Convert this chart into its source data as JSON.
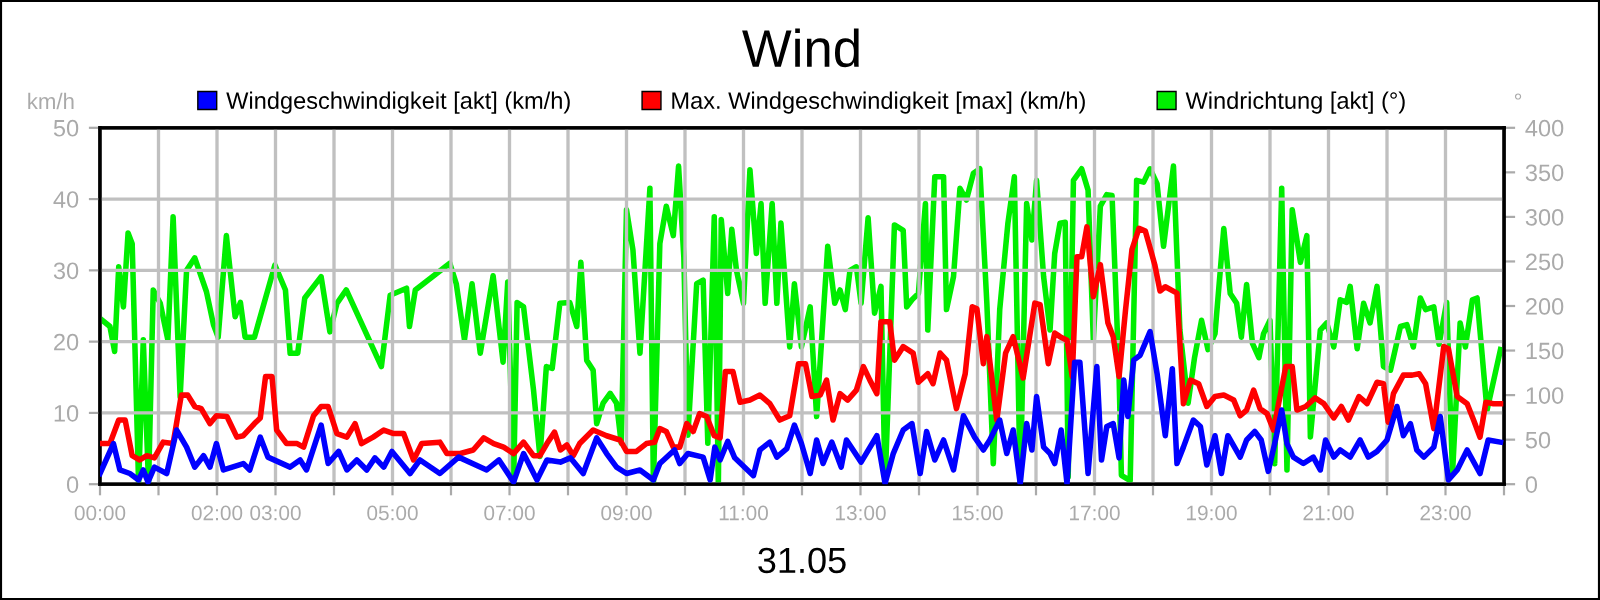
{
  "chart_data": {
    "type": "line",
    "title": "Wind",
    "xlabel": "31.05",
    "ylabel": "km/h",
    "y2label": "°",
    "legend": "top",
    "grid": true,
    "marker": "none",
    "line_style": "solid",
    "xlim": [
      0,
      24
    ],
    "xticks": [
      {
        "value": 0,
        "label": "00:00"
      },
      {
        "value": 1,
        "label": null
      },
      {
        "value": 2,
        "label": "02:00"
      },
      {
        "value": 3,
        "label": "03:00"
      },
      {
        "value": 4,
        "label": null
      },
      {
        "value": 5,
        "label": "05:00"
      },
      {
        "value": 6,
        "label": null
      },
      {
        "value": 7,
        "label": "07:00"
      },
      {
        "value": 8,
        "label": null
      },
      {
        "value": 9,
        "label": "09:00"
      },
      {
        "value": 10,
        "label": null
      },
      {
        "value": 11,
        "label": "11:00"
      },
      {
        "value": 12,
        "label": null
      },
      {
        "value": 13,
        "label": "13:00"
      },
      {
        "value": 14,
        "label": null
      },
      {
        "value": 15,
        "label": "15:00"
      },
      {
        "value": 16,
        "label": null
      },
      {
        "value": 17,
        "label": "17:00"
      },
      {
        "value": 18,
        "label": null
      },
      {
        "value": 19,
        "label": "19:00"
      },
      {
        "value": 20,
        "label": null
      },
      {
        "value": 21,
        "label": "21:00"
      },
      {
        "value": 22,
        "label": null
      },
      {
        "value": 23,
        "label": "23:00"
      },
      {
        "value": 24,
        "label": null
      }
    ],
    "ylim": [
      0,
      50
    ],
    "yticks": [
      0,
      10,
      20,
      30,
      40,
      50
    ],
    "y2lim": [
      0,
      400
    ],
    "y2ticks": [
      0,
      50,
      100,
      150,
      200,
      250,
      300,
      350,
      400
    ],
    "series": [
      {
        "name": "Windrichtung [akt] (°)",
        "color": "#00ee00",
        "axis": "y2",
        "x": [
          0.0,
          0.17,
          0.25,
          0.32,
          0.4,
          0.48,
          0.55,
          0.66,
          0.74,
          0.83,
          0.91,
          1.03,
          1.16,
          1.25,
          1.37,
          1.48,
          1.62,
          1.82,
          1.94,
          2.02,
          2.16,
          2.31,
          2.4,
          2.48,
          2.64,
          2.99,
          3.17,
          3.25,
          3.38,
          3.5,
          3.78,
          3.93,
          4.05,
          4.21,
          4.81,
          4.96,
          5.24,
          5.29,
          5.39,
          5.98,
          6.09,
          6.23,
          6.36,
          6.5,
          6.72,
          6.89,
          6.97,
          7.07,
          7.13,
          7.24,
          7.41,
          7.52,
          7.63,
          7.73,
          7.86,
          8.03,
          8.15,
          8.22,
          8.32,
          8.43,
          8.49,
          8.6,
          8.72,
          8.83,
          8.91,
          9.0,
          9.11,
          9.23,
          9.4,
          9.46,
          9.57,
          9.68,
          9.8,
          9.89,
          9.98,
          10.05,
          10.2,
          10.31,
          10.39,
          10.5,
          10.57,
          10.62,
          10.73,
          10.8,
          10.88,
          11.0,
          11.11,
          11.22,
          11.3,
          11.37,
          11.49,
          11.57,
          11.64,
          11.79,
          11.87,
          11.99,
          12.14,
          12.25,
          12.44,
          12.56,
          12.65,
          12.74,
          12.82,
          12.93,
          13.01,
          13.13,
          13.24,
          13.35,
          13.42,
          13.58,
          13.73,
          13.79,
          13.88,
          13.99,
          14.11,
          14.15,
          14.27,
          14.42,
          14.47,
          14.59,
          14.7,
          14.81,
          14.93,
          15.04,
          15.16,
          15.27,
          15.38,
          15.52,
          15.63,
          15.73,
          15.84,
          15.93,
          16.01,
          16.13,
          16.24,
          16.32,
          16.41,
          16.5,
          16.55,
          16.64,
          16.78,
          16.89,
          16.98,
          17.1,
          17.21,
          17.3,
          17.42,
          17.46,
          17.61,
          17.72,
          17.84,
          17.95,
          18.07,
          18.18,
          18.35,
          18.46,
          18.6,
          18.71,
          18.83,
          18.94,
          19.06,
          19.21,
          19.32,
          19.43,
          19.51,
          19.6,
          19.7,
          19.81,
          19.89,
          20.0,
          20.08,
          20.2,
          20.29,
          20.38,
          20.52,
          20.63,
          20.69,
          20.86,
          20.97,
          21.09,
          21.2,
          21.31,
          21.37,
          21.49,
          21.6,
          21.71,
          21.83,
          21.94,
          22.06,
          22.23,
          22.34,
          22.45,
          22.57,
          22.66,
          22.8,
          22.89,
          23.02,
          23.12,
          23.25,
          23.34,
          23.46,
          23.54,
          23.71,
          23.94
        ],
        "values": [
          186,
          177,
          149,
          244,
          199,
          282,
          270,
          0,
          162,
          0,
          218,
          203,
          162,
          300,
          98,
          240,
          254,
          216,
          179,
          165,
          279,
          188,
          204,
          165,
          165,
          246,
          218,
          147,
          147,
          209,
          233,
          171,
          203,
          218,
          132,
          212,
          220,
          177,
          218,
          248,
          225,
          162,
          225,
          147,
          234,
          137,
          227,
          0,
          204,
          199,
          106,
          31,
          132,
          130,
          203,
          204,
          177,
          249,
          139,
          128,
          68,
          91,
          102,
          91,
          46,
          308,
          263,
          147,
          332,
          0,
          270,
          312,
          279,
          357,
          255,
          55,
          225,
          229,
          46,
          300,
          0,
          297,
          214,
          286,
          240,
          203,
          353,
          259,
          315,
          203,
          315,
          203,
          293,
          154,
          225,
          154,
          199,
          76,
          267,
          203,
          218,
          196,
          240,
          244,
          203,
          299,
          192,
          222,
          0,
          291,
          285,
          199,
          207,
          214,
          315,
          173,
          345,
          345,
          196,
          233,
          332,
          319,
          349,
          354,
          203,
          23,
          196,
          293,
          345,
          0,
          315,
          274,
          341,
          233,
          173,
          259,
          293,
          294,
          8,
          341,
          354,
          330,
          162,
          312,
          325,
          324,
          121,
          10,
          4,
          341,
          339,
          354,
          337,
          267,
          357,
          173,
          91,
          142,
          184,
          151,
          169,
          287,
          214,
          203,
          165,
          224,
          158,
          142,
          169,
          184,
          23,
          332,
          16,
          308,
          249,
          279,
          53,
          173,
          181,
          154,
          207,
          204,
          222,
          152,
          203,
          181,
          222,
          132,
          128,
          177,
          179,
          154,
          209,
          196,
          199,
          157,
          204,
          12,
          181,
          154,
          207,
          209,
          83,
          151
        ]
      },
      {
        "name": "Max. Windgeschwindigkeit [max] (km/h)",
        "color": "#ff0000",
        "x": [
          0.0,
          0.17,
          0.32,
          0.43,
          0.55,
          0.68,
          0.8,
          0.93,
          1.08,
          1.25,
          1.39,
          1.5,
          1.62,
          1.73,
          1.88,
          1.99,
          2.17,
          2.34,
          2.45,
          2.64,
          2.74,
          2.83,
          2.94,
          3.02,
          3.19,
          3.37,
          3.48,
          3.65,
          3.78,
          3.9,
          4.05,
          4.22,
          4.36,
          4.47,
          4.67,
          4.85,
          5.02,
          5.19,
          5.36,
          5.5,
          5.81,
          5.93,
          6.16,
          6.38,
          6.56,
          6.73,
          6.9,
          7.07,
          7.24,
          7.41,
          7.52,
          7.64,
          7.77,
          7.87,
          7.98,
          8.09,
          8.2,
          8.43,
          8.66,
          8.89,
          9.0,
          9.17,
          9.34,
          9.48,
          9.57,
          9.68,
          9.8,
          9.91,
          10.03,
          10.14,
          10.25,
          10.37,
          10.5,
          10.6,
          10.69,
          10.82,
          10.94,
          11.11,
          11.28,
          11.45,
          11.62,
          11.79,
          11.94,
          12.06,
          12.17,
          12.31,
          12.42,
          12.53,
          12.65,
          12.78,
          12.93,
          13.05,
          13.16,
          13.28,
          13.35,
          13.5,
          13.58,
          13.73,
          13.9,
          13.99,
          14.15,
          14.24,
          14.36,
          14.47,
          14.64,
          14.79,
          14.91,
          14.99,
          15.1,
          15.16,
          15.33,
          15.48,
          15.61,
          15.78,
          15.98,
          16.07,
          16.21,
          16.32,
          16.41,
          16.53,
          16.62,
          16.7,
          16.78,
          16.87,
          16.98,
          17.1,
          17.23,
          17.32,
          17.42,
          17.53,
          17.64,
          17.76,
          17.87,
          18.03,
          18.12,
          18.21,
          18.41,
          18.52,
          18.64,
          18.78,
          18.92,
          19.06,
          19.21,
          19.38,
          19.49,
          19.6,
          19.72,
          19.83,
          19.95,
          20.06,
          20.27,
          20.38,
          20.46,
          20.61,
          20.77,
          20.92,
          21.09,
          21.22,
          21.34,
          21.52,
          21.66,
          21.83,
          21.94,
          22.02,
          22.11,
          22.28,
          22.43,
          22.55,
          22.66,
          22.8,
          22.97,
          23.05,
          23.2,
          23.37,
          23.48,
          23.59,
          23.69,
          23.82,
          23.94
        ],
        "values": [
          5.7,
          5.7,
          9.0,
          9.0,
          4.0,
          3.4,
          4.0,
          3.7,
          5.9,
          5.7,
          12.5,
          12.5,
          10.9,
          10.6,
          8.5,
          9.6,
          9.5,
          6.6,
          6.8,
          8.5,
          9.3,
          15.1,
          15.1,
          7.6,
          5.7,
          5.7,
          5.2,
          9.6,
          10.9,
          10.9,
          7.1,
          6.6,
          8.5,
          5.7,
          6.6,
          7.6,
          7.1,
          7.1,
          3.4,
          5.7,
          5.9,
          4.3,
          4.3,
          4.8,
          6.5,
          5.7,
          5.2,
          4.3,
          5.9,
          4.0,
          4.0,
          5.7,
          7.3,
          4.8,
          5.5,
          4.0,
          5.7,
          7.6,
          6.8,
          6.2,
          4.6,
          4.6,
          5.7,
          5.9,
          7.8,
          7.4,
          5.2,
          5.2,
          8.5,
          7.4,
          9.9,
          9.5,
          6.8,
          6.5,
          15.8,
          15.8,
          11.5,
          11.8,
          12.5,
          11.3,
          9.0,
          9.6,
          16.9,
          16.9,
          12.3,
          12.5,
          14.6,
          9.0,
          12.7,
          11.8,
          13.2,
          16.5,
          14.6,
          12.7,
          22.8,
          22.8,
          17.4,
          19.3,
          18.4,
          14.3,
          15.5,
          14.1,
          18.4,
          17.4,
          10.6,
          15.5,
          24.9,
          24.6,
          16.9,
          20.7,
          9.0,
          18.4,
          20.7,
          14.9,
          25.4,
          25.2,
          16.9,
          21.2,
          20.7,
          20.2,
          15.1,
          31.9,
          31.9,
          36.1,
          26.3,
          30.8,
          22.6,
          20.7,
          15.1,
          24.4,
          32.9,
          35.9,
          35.5,
          30.8,
          27.1,
          27.7,
          26.8,
          11.3,
          14.6,
          14.1,
          10.9,
          12.3,
          12.5,
          11.8,
          9.6,
          10.4,
          13.2,
          10.6,
          9.9,
          7.6,
          16.5,
          16.5,
          10.4,
          10.9,
          12.1,
          11.3,
          9.3,
          10.9,
          9.0,
          12.3,
          11.3,
          14.3,
          14.1,
          8.7,
          12.7,
          15.3,
          15.3,
          15.5,
          14.1,
          7.8,
          19.3,
          19.0,
          12.3,
          11.3,
          9.0,
          6.6,
          11.5,
          11.3,
          11.3
        ]
      },
      {
        "name": "Windgeschwindigkeit [akt] (km/h)",
        "color": "#0000ff",
        "x": [
          0.0,
          0.23,
          0.34,
          0.51,
          0.66,
          0.74,
          0.82,
          0.93,
          1.14,
          1.31,
          1.48,
          1.62,
          1.77,
          1.88,
          1.99,
          2.11,
          2.45,
          2.56,
          2.74,
          2.87,
          3.25,
          3.42,
          3.53,
          3.78,
          3.9,
          4.08,
          4.22,
          4.39,
          4.56,
          4.7,
          4.85,
          4.99,
          5.3,
          5.47,
          5.81,
          6.13,
          6.61,
          6.82,
          7.07,
          7.24,
          7.47,
          7.64,
          7.87,
          8.04,
          8.26,
          8.49,
          8.66,
          8.83,
          9.0,
          9.23,
          9.46,
          9.57,
          9.82,
          9.91,
          10.05,
          10.31,
          10.43,
          10.51,
          10.6,
          10.73,
          10.85,
          11.17,
          11.28,
          11.45,
          11.57,
          11.74,
          11.87,
          11.99,
          12.14,
          12.25,
          12.36,
          12.51,
          12.67,
          12.76,
          13.01,
          13.28,
          13.42,
          13.56,
          13.73,
          13.88,
          14.02,
          14.13,
          14.27,
          14.42,
          14.59,
          14.76,
          14.95,
          15.1,
          15.21,
          15.38,
          15.5,
          15.61,
          15.73,
          15.84,
          15.93,
          16.01,
          16.13,
          16.24,
          16.32,
          16.43,
          16.53,
          16.66,
          16.75,
          16.89,
          17.04,
          17.12,
          17.21,
          17.32,
          17.42,
          17.5,
          17.57,
          17.67,
          17.78,
          17.95,
          18.07,
          18.21,
          18.33,
          18.41,
          18.52,
          18.69,
          18.81,
          18.92,
          19.06,
          19.17,
          19.28,
          19.49,
          19.6,
          19.74,
          19.85,
          19.97,
          20.08,
          20.2,
          20.29,
          20.4,
          20.57,
          20.74,
          20.86,
          20.95,
          21.09,
          21.2,
          21.37,
          21.54,
          21.68,
          21.83,
          22.0,
          22.17,
          22.28,
          22.4,
          22.51,
          22.63,
          22.8,
          22.91,
          23.05,
          23.2,
          23.37,
          23.59,
          23.73,
          23.94
        ],
        "values": [
          1.5,
          5.7,
          2.0,
          1.5,
          0.6,
          2.0,
          0.3,
          2.4,
          1.5,
          7.6,
          5.2,
          2.4,
          4.0,
          2.4,
          5.7,
          2.0,
          2.9,
          2.0,
          6.6,
          3.8,
          2.4,
          3.4,
          2.0,
          8.3,
          2.9,
          4.6,
          2.0,
          3.4,
          2.0,
          3.7,
          2.4,
          4.6,
          1.5,
          3.4,
          1.5,
          3.8,
          2.0,
          3.4,
          0.3,
          4.3,
          0.6,
          3.4,
          3.1,
          3.7,
          1.5,
          6.5,
          4.3,
          2.4,
          1.5,
          2.0,
          0.6,
          2.9,
          4.8,
          2.9,
          4.3,
          3.8,
          0.6,
          5.2,
          3.4,
          6.0,
          3.7,
          1.2,
          4.8,
          5.9,
          3.8,
          5.0,
          8.3,
          5.7,
          1.5,
          6.2,
          2.9,
          5.9,
          2.4,
          6.2,
          3.1,
          6.8,
          0.1,
          4.3,
          7.6,
          8.5,
          1.5,
          7.4,
          3.4,
          6.2,
          2.0,
          9.6,
          6.6,
          4.8,
          6.2,
          9.0,
          4.3,
          7.6,
          0.1,
          8.5,
          4.8,
          12.3,
          5.2,
          4.3,
          2.9,
          7.6,
          0.1,
          17.1,
          17.1,
          1.5,
          16.5,
          3.4,
          8.1,
          8.5,
          3.7,
          14.6,
          9.5,
          17.4,
          18.1,
          21.4,
          15.5,
          6.8,
          16.2,
          2.9,
          5.2,
          9.0,
          8.1,
          2.7,
          6.8,
          1.5,
          6.8,
          3.8,
          6.2,
          7.4,
          6.2,
          1.8,
          5.7,
          10.4,
          5.7,
          3.8,
          2.9,
          3.8,
          2.0,
          6.2,
          3.8,
          4.8,
          3.8,
          6.2,
          3.8,
          4.6,
          6.2,
          10.9,
          6.8,
          8.5,
          4.8,
          3.8,
          5.2,
          9.5,
          0.6,
          2.0,
          4.8,
          1.5,
          6.2,
          5.9
        ]
      }
    ]
  }
}
